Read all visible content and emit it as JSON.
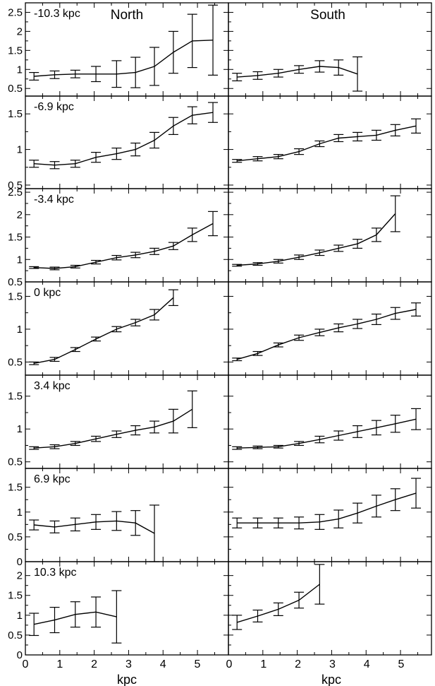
{
  "figure": {
    "column_titles": [
      "North",
      "South"
    ],
    "xlabel": "kpc",
    "x_ticks": [
      "0",
      "1",
      "2",
      "3",
      "4",
      "5"
    ]
  },
  "chart_data": [
    {
      "type": "line",
      "panel": "North",
      "row_label": "-10.3 kpc",
      "ylim": [
        0.3,
        2.75
      ],
      "xlim": [
        0,
        5.9
      ],
      "yticks": [
        0.5,
        1,
        1.5,
        2,
        2.5
      ],
      "x": [
        0.25,
        0.85,
        1.45,
        2.05,
        2.65,
        3.2,
        3.75,
        4.3,
        4.85,
        5.45
      ],
      "y": [
        0.82,
        0.86,
        0.88,
        0.88,
        0.88,
        0.92,
        1.08,
        1.45,
        1.75,
        1.77
      ],
      "err": [
        0.1,
        0.1,
        0.1,
        0.2,
        0.35,
        0.4,
        0.5,
        0.55,
        0.7,
        0.92
      ]
    },
    {
      "type": "line",
      "panel": "South",
      "row_label": "",
      "ylim": [
        0.3,
        2.75
      ],
      "xlim": [
        0,
        5.9
      ],
      "yticks": [
        0.5,
        1,
        1.5,
        2,
        2.5
      ],
      "x": [
        0.25,
        0.85,
        1.45,
        2.05,
        2.65,
        3.2,
        3.75
      ],
      "y": [
        0.8,
        0.84,
        0.9,
        1.0,
        1.08,
        1.05,
        0.88
      ],
      "err": [
        0.1,
        0.1,
        0.1,
        0.1,
        0.15,
        0.2,
        0.45
      ]
    },
    {
      "type": "line",
      "panel": "North",
      "row_label": "-6.9 kpc",
      "ylim": [
        0.45,
        1.75
      ],
      "xlim": [
        0,
        5.9
      ],
      "yticks": [
        0.5,
        1,
        1.5
      ],
      "x": [
        0.25,
        0.85,
        1.45,
        2.05,
        2.65,
        3.2,
        3.75,
        4.3,
        4.85,
        5.45
      ],
      "y": [
        0.8,
        0.78,
        0.8,
        0.89,
        0.94,
        1.0,
        1.13,
        1.33,
        1.48,
        1.52
      ],
      "err": [
        0.05,
        0.05,
        0.05,
        0.07,
        0.08,
        0.09,
        0.11,
        0.12,
        0.12,
        0.14
      ]
    },
    {
      "type": "line",
      "panel": "South",
      "row_label": "",
      "ylim": [
        0.45,
        1.75
      ],
      "xlim": [
        0,
        5.9
      ],
      "yticks": [
        0.5,
        1,
        1.5
      ],
      "x": [
        0.25,
        0.85,
        1.45,
        2.05,
        2.65,
        3.2,
        3.75,
        4.3,
        4.85,
        5.45
      ],
      "y": [
        0.84,
        0.87,
        0.9,
        0.97,
        1.08,
        1.16,
        1.18,
        1.2,
        1.27,
        1.33
      ],
      "err": [
        0.02,
        0.03,
        0.03,
        0.04,
        0.04,
        0.05,
        0.06,
        0.07,
        0.08,
        0.1
      ]
    },
    {
      "type": "line",
      "panel": "North",
      "row_label": "-3.4 kpc",
      "ylim": [
        0.5,
        2.58
      ],
      "xlim": [
        0,
        5.9
      ],
      "yticks": [
        0.5,
        1,
        1.5,
        2,
        2.5
      ],
      "x": [
        0.25,
        0.85,
        1.45,
        2.05,
        2.65,
        3.2,
        3.75,
        4.3,
        4.85,
        5.45
      ],
      "y": [
        0.82,
        0.8,
        0.84,
        0.94,
        1.04,
        1.1,
        1.18,
        1.3,
        1.55,
        1.8
      ],
      "err": [
        0.02,
        0.03,
        0.03,
        0.04,
        0.05,
        0.06,
        0.07,
        0.08,
        0.15,
        0.27
      ]
    },
    {
      "type": "line",
      "panel": "South",
      "row_label": "",
      "ylim": [
        0.5,
        2.58
      ],
      "xlim": [
        0,
        5.9
      ],
      "yticks": [
        0.5,
        1,
        1.5,
        2,
        2.5
      ],
      "x": [
        0.25,
        0.85,
        1.45,
        2.05,
        2.65,
        3.2,
        3.75,
        4.3,
        4.85
      ],
      "y": [
        0.87,
        0.9,
        0.96,
        1.05,
        1.15,
        1.25,
        1.35,
        1.55,
        2.02
      ],
      "err": [
        0.02,
        0.03,
        0.04,
        0.05,
        0.06,
        0.07,
        0.1,
        0.15,
        0.4
      ]
    },
    {
      "type": "line",
      "panel": "North",
      "row_label": "0 kpc",
      "ylim": [
        0.3,
        1.72
      ],
      "xlim": [
        0,
        5.9
      ],
      "yticks": [
        0.5,
        1,
        1.5
      ],
      "x": [
        0.25,
        0.85,
        1.45,
        2.05,
        2.65,
        3.2,
        3.75,
        4.3
      ],
      "y": [
        0.48,
        0.54,
        0.69,
        0.85,
        1.0,
        1.1,
        1.22,
        1.48
      ],
      "err": [
        0.02,
        0.03,
        0.03,
        0.03,
        0.04,
        0.05,
        0.08,
        0.12
      ]
    },
    {
      "type": "line",
      "panel": "South",
      "row_label": "",
      "ylim": [
        0.3,
        1.72
      ],
      "xlim": [
        0,
        5.9
      ],
      "yticks": [
        0.5,
        1,
        1.5
      ],
      "x": [
        0.25,
        0.85,
        1.45,
        2.05,
        2.65,
        3.2,
        3.75,
        4.3,
        4.85,
        5.45
      ],
      "y": [
        0.54,
        0.63,
        0.76,
        0.87,
        0.95,
        1.02,
        1.08,
        1.15,
        1.24,
        1.3
      ],
      "err": [
        0.02,
        0.03,
        0.03,
        0.04,
        0.05,
        0.06,
        0.07,
        0.08,
        0.09,
        0.1
      ]
    },
    {
      "type": "line",
      "panel": "North",
      "row_label": "3.4 kpc",
      "ylim": [
        0.4,
        1.82
      ],
      "xlim": [
        0,
        5.9
      ],
      "yticks": [
        0.5,
        1,
        1.5
      ],
      "x": [
        0.25,
        0.85,
        1.45,
        2.05,
        2.65,
        3.2,
        3.75,
        4.3,
        4.85
      ],
      "y": [
        0.71,
        0.73,
        0.78,
        0.85,
        0.92,
        0.98,
        1.03,
        1.12,
        1.3
      ],
      "err": [
        0.02,
        0.03,
        0.03,
        0.04,
        0.05,
        0.07,
        0.09,
        0.18,
        0.28
      ]
    },
    {
      "type": "line",
      "panel": "South",
      "row_label": "",
      "ylim": [
        0.4,
        1.82
      ],
      "xlim": [
        0,
        5.9
      ],
      "yticks": [
        0.5,
        1,
        1.5
      ],
      "x": [
        0.25,
        0.85,
        1.45,
        2.05,
        2.65,
        3.2,
        3.75,
        4.3,
        4.85,
        5.45
      ],
      "y": [
        0.71,
        0.72,
        0.73,
        0.78,
        0.84,
        0.9,
        0.96,
        1.02,
        1.08,
        1.15
      ],
      "err": [
        0.02,
        0.02,
        0.02,
        0.03,
        0.05,
        0.07,
        0.09,
        0.11,
        0.13,
        0.16
      ]
    },
    {
      "type": "line",
      "panel": "North",
      "row_label": "6.9 kpc",
      "ylim": [
        0,
        1.88
      ],
      "xlim": [
        0,
        5.9
      ],
      "yticks": [
        0,
        0.5,
        1,
        1.5
      ],
      "x": [
        0.25,
        0.85,
        1.45,
        2.05,
        2.65,
        3.2,
        3.75
      ],
      "y": [
        0.74,
        0.7,
        0.75,
        0.8,
        0.82,
        0.78,
        0.57
      ],
      "err": [
        0.1,
        0.12,
        0.13,
        0.15,
        0.19,
        0.25,
        0.57
      ]
    },
    {
      "type": "line",
      "panel": "South",
      "row_label": "",
      "ylim": [
        0,
        1.88
      ],
      "xlim": [
        0,
        5.9
      ],
      "yticks": [
        0,
        0.5,
        1,
        1.5
      ],
      "x": [
        0.25,
        0.85,
        1.45,
        2.05,
        2.65,
        3.2,
        3.75,
        4.3,
        4.85,
        5.45
      ],
      "y": [
        0.78,
        0.78,
        0.78,
        0.78,
        0.8,
        0.86,
        0.98,
        1.12,
        1.25,
        1.38
      ],
      "err": [
        0.1,
        0.1,
        0.1,
        0.12,
        0.15,
        0.18,
        0.2,
        0.22,
        0.22,
        0.3
      ]
    },
    {
      "type": "line",
      "panel": "North",
      "row_label": "10.3 kpc",
      "ylim": [
        0,
        2.35
      ],
      "xlim": [
        0,
        5.9
      ],
      "yticks": [
        0,
        0.5,
        1,
        1.5,
        2
      ],
      "x": [
        0.25,
        0.85,
        1.45,
        2.05,
        2.65
      ],
      "y": [
        0.77,
        0.88,
        1.02,
        1.08,
        0.96
      ],
      "err": [
        0.28,
        0.32,
        0.32,
        0.38,
        0.66
      ]
    },
    {
      "type": "line",
      "panel": "South",
      "row_label": "",
      "ylim": [
        0,
        2.35
      ],
      "xlim": [
        0,
        5.9
      ],
      "yticks": [
        0,
        0.5,
        1,
        1.5,
        2
      ],
      "x": [
        0.25,
        0.85,
        1.45,
        2.05,
        2.65
      ],
      "y": [
        0.82,
        0.98,
        1.15,
        1.38,
        1.78
      ],
      "err": [
        0.18,
        0.15,
        0.16,
        0.2,
        0.5
      ]
    }
  ]
}
